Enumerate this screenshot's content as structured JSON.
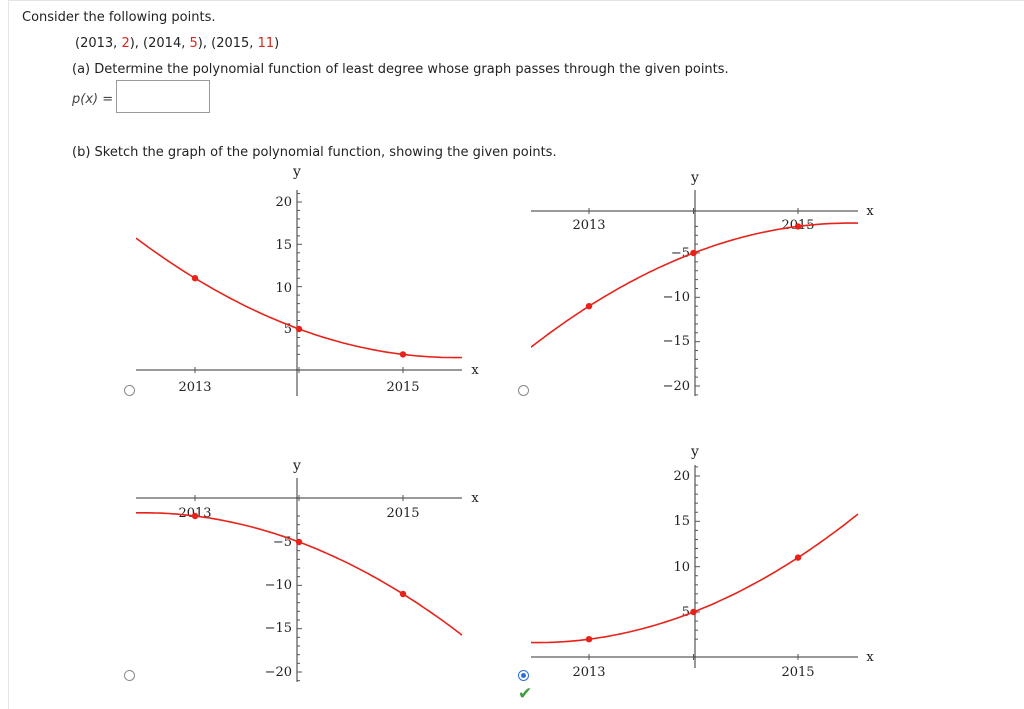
{
  "question": {
    "prompt": "Consider the following points.",
    "points": [
      {
        "x": "2013",
        "y": "2"
      },
      {
        "x": "2014",
        "y": "5"
      },
      {
        "x": "2015",
        "y": "11"
      }
    ],
    "part_a": "(a) Determine the polynomial function of least degree whose graph passes through the given points.",
    "px_label": "p(x) =",
    "px_value": "",
    "part_b": "(b) Sketch the graph of the polynomial function, showing the given points."
  },
  "colors": {
    "curve": "#e8221a",
    "point": "#e8221a",
    "radio_selected": "#2a6fd6",
    "check": "#3da03d"
  },
  "icons": {
    "correct": "check-mark-icon"
  },
  "selected_option": 3,
  "chart_data": [
    {
      "type": "line",
      "option": 0,
      "x_ticks": [
        "2013",
        "2015"
      ],
      "y_ticks": [
        "20",
        "15",
        "10",
        "5"
      ],
      "xlabel": "x",
      "ylabel": "y",
      "points": [
        {
          "x": 2013,
          "y": 11
        },
        {
          "x": 2014,
          "y": 5
        },
        {
          "x": 2015,
          "y": 2
        }
      ]
    },
    {
      "type": "line",
      "option": 1,
      "x_ticks": [
        "2013",
        "2015"
      ],
      "y_ticks": [
        "-5",
        "-10",
        "-15",
        "-20"
      ],
      "xlabel": "x",
      "ylabel": "y",
      "points": [
        {
          "x": 2013,
          "y": -11
        },
        {
          "x": 2014,
          "y": -5
        },
        {
          "x": 2015,
          "y": -2
        }
      ]
    },
    {
      "type": "line",
      "option": 2,
      "x_ticks": [
        "2013",
        "2015"
      ],
      "y_ticks": [
        "-5",
        "-10",
        "-15",
        "-20"
      ],
      "xlabel": "x",
      "ylabel": "y",
      "points": [
        {
          "x": 2013,
          "y": -2
        },
        {
          "x": 2014,
          "y": -5
        },
        {
          "x": 2015,
          "y": -11
        }
      ]
    },
    {
      "type": "line",
      "option": 3,
      "x_ticks": [
        "2013",
        "2015"
      ],
      "y_ticks": [
        "20",
        "15",
        "10",
        "5"
      ],
      "xlabel": "x",
      "ylabel": "y",
      "points": [
        {
          "x": 2013,
          "y": 2
        },
        {
          "x": 2014,
          "y": 5
        },
        {
          "x": 2015,
          "y": 11
        }
      ]
    }
  ]
}
